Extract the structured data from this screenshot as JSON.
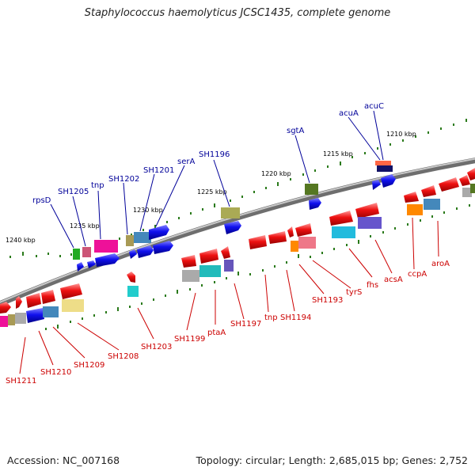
{
  "title": "Staphylococcus haemolyticus JCSC1435, complete genome",
  "footer": {
    "accession": "Accession: NC_007168",
    "topology": "Topology: circular; Length: 2,685,015 bp; Genes: 2,752"
  },
  "scale_labels": [
    "1210 kbp",
    "1215 kbp",
    "1220 kbp",
    "1225 kbp",
    "1230 kbp",
    "1235 kbp",
    "1240 kbp"
  ],
  "labels_forward": [
    "rpsD",
    "SH1205",
    "tnp",
    "SH1202",
    "SH1201",
    "serA",
    "SH1196",
    "sgtA",
    "acuA",
    "acuC"
  ],
  "labels_reverse": [
    "SH1211",
    "SH1210",
    "SH1209",
    "SH1208",
    "SH1203",
    "SH1199",
    "ptaA",
    "SH1197",
    "tnp",
    "SH1194",
    "SH1193",
    "tyrS",
    "fhs",
    "acsA",
    "ccpA",
    "aroA"
  ],
  "colors": {
    "forward_label": "#000099",
    "reverse_label": "#cc0000",
    "backbone": "#888888",
    "tick": "#2a7a1a"
  }
}
